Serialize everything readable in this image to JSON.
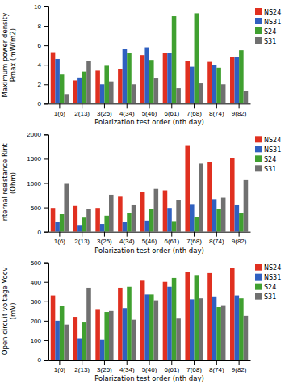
{
  "chart_data": [
    {
      "type": "bar",
      "categories": [
        "1(6)",
        "2(13)",
        "3(25)",
        "4(34)",
        "5(46)",
        "6(61)",
        "7(68)",
        "8(74)",
        "9(82)"
      ],
      "series": [
        {
          "name": "NS24",
          "color": "#e03020",
          "values": [
            5.3,
            2.4,
            3.4,
            3.6,
            5.0,
            5.2,
            4.4,
            4.3,
            4.8
          ]
        },
        {
          "name": "NS31",
          "color": "#3060c0",
          "values": [
            4.6,
            2.7,
            2.0,
            5.6,
            5.8,
            5.2,
            3.8,
            4.0,
            4.8
          ]
        },
        {
          "name": "S24",
          "color": "#40a030",
          "values": [
            3.0,
            3.3,
            3.9,
            5.2,
            4.5,
            9.0,
            9.3,
            3.7,
            5.5
          ]
        },
        {
          "name": "S31",
          "color": "#707070",
          "values": [
            1.0,
            4.4,
            2.3,
            2.0,
            2.6,
            1.6,
            2.1,
            2.0,
            1.3
          ]
        }
      ],
      "xlabel": "Polarization test order (nth day)",
      "ylabel": "Maximum power density\nPmax (mW/m2)",
      "ylim": [
        0,
        10
      ],
      "yticks": [
        0,
        2,
        4,
        6,
        8,
        10
      ],
      "legend": "right"
    },
    {
      "type": "bar",
      "categories": [
        "1(6)",
        "2(13)",
        "3(25)",
        "4(34)",
        "5(46)",
        "6(61)",
        "7(68)",
        "8(74)",
        "9(82)"
      ],
      "series": [
        {
          "name": "NS24",
          "color": "#e03020",
          "values": [
            490,
            530,
            490,
            720,
            810,
            850,
            1780,
            1430,
            1510
          ]
        },
        {
          "name": "NS31",
          "color": "#3060c0",
          "values": [
            200,
            140,
            160,
            210,
            230,
            490,
            570,
            670,
            560
          ]
        },
        {
          "name": "S24",
          "color": "#40a030",
          "values": [
            360,
            290,
            330,
            380,
            460,
            220,
            300,
            460,
            380
          ]
        },
        {
          "name": "S31",
          "color": "#707070",
          "values": [
            1000,
            460,
            760,
            560,
            880,
            650,
            1400,
            700,
            1060
          ]
        }
      ],
      "xlabel": "Polarization test order (nth day)",
      "ylabel": "Internal resistance Rint\n(Ohm)",
      "ylim": [
        0,
        2000
      ],
      "yticks": [
        0,
        500,
        1000,
        1500,
        2000
      ],
      "legend": "right"
    },
    {
      "type": "bar",
      "categories": [
        "1(6)",
        "2(13)",
        "3(25)",
        "4(34)",
        "5(46)",
        "6(61)",
        "7(68)",
        "8(74)",
        "9(82)"
      ],
      "series": [
        {
          "name": "NS24",
          "color": "#e03020",
          "values": [
            330,
            220,
            260,
            370,
            410,
            400,
            450,
            445,
            470
          ]
        },
        {
          "name": "NS31",
          "color": "#3060c0",
          "values": [
            200,
            110,
            105,
            265,
            335,
            375,
            310,
            325,
            330
          ]
        },
        {
          "name": "S24",
          "color": "#40a030",
          "values": [
            275,
            195,
            245,
            375,
            335,
            420,
            435,
            270,
            315
          ]
        },
        {
          "name": "S31",
          "color": "#707070",
          "values": [
            180,
            370,
            250,
            205,
            305,
            215,
            315,
            280,
            225
          ]
        }
      ],
      "xlabel": "Polarization test order (nth day)",
      "ylabel": "Open circuit voltage Vocv\n(mV)",
      "ylim": [
        0,
        500
      ],
      "yticks": [
        0,
        100,
        200,
        300,
        400,
        500
      ],
      "legend": "right"
    }
  ]
}
